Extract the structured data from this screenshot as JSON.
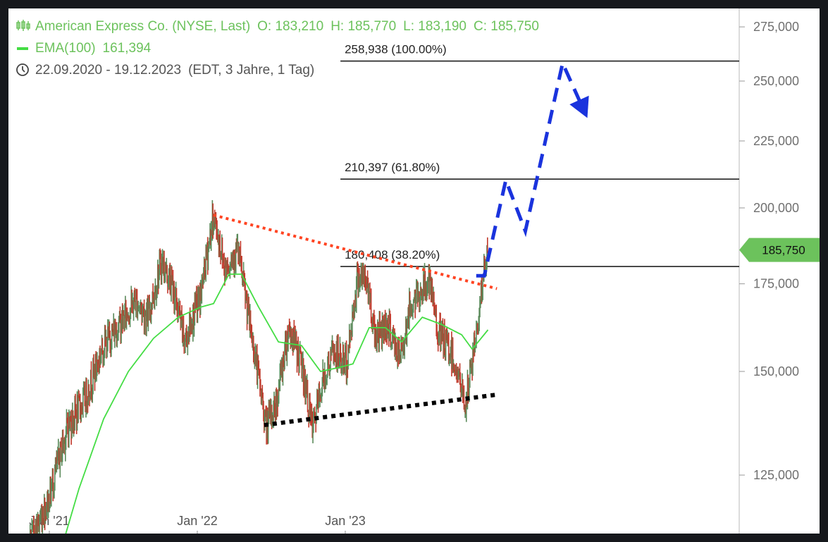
{
  "header": {
    "instrument": "American Express Co. (NYSE, Last)",
    "open": "O: 183,210",
    "high": "H: 185,770",
    "low": "L: 183,190",
    "close": "C: 185,750",
    "ema_label": "EMA(100)",
    "ema_value": "161,394",
    "date_range": "22.09.2020 - 19.12.2023",
    "range_info": "(EDT, 3 Jahre, 1 Tag)",
    "icons": [
      "candlestick-icon",
      "ema-line-icon",
      "clock-icon"
    ]
  },
  "colors": {
    "legend_green": "#6cc25c",
    "candle_up": "#5a8a5a",
    "candle_down": "#c0392b",
    "ema": "#44dd44",
    "resistance": "#ff4422",
    "support": "#000000",
    "projection": "#1a33dd",
    "price_badge": "#6cc25c"
  },
  "chart_data": {
    "type": "line",
    "title": "American Express Co. (NYSE, Last)",
    "xlabel": "",
    "ylabel": "",
    "y_scale": "log",
    "ylim": [
      112000,
      285000
    ],
    "xlim": [
      "2020-09-22",
      "2024-09-15"
    ],
    "x_ticks": [
      {
        "date": "2021-01-01",
        "label": "Jan '21"
      },
      {
        "date": "2022-01-01",
        "label": "Jan '22"
      },
      {
        "date": "2023-01-01",
        "label": "Jan '23"
      }
    ],
    "y_ticks": [
      {
        "value": 275000,
        "label": "275,000"
      },
      {
        "value": 250000,
        "label": "250,000"
      },
      {
        "value": 225000,
        "label": "225,000"
      },
      {
        "value": 200000,
        "label": "200,000"
      },
      {
        "value": 175000,
        "label": "175,000"
      },
      {
        "value": 150000,
        "label": "150,000"
      },
      {
        "value": 125000,
        "label": "125,000"
      }
    ],
    "price_series": [
      {
        "date": "2020-09-22",
        "value": 100000
      },
      {
        "date": "2020-11-15",
        "value": 111000
      },
      {
        "date": "2020-12-31",
        "value": 120000
      },
      {
        "date": "2021-02-15",
        "value": 136000
      },
      {
        "date": "2021-03-31",
        "value": 143000
      },
      {
        "date": "2021-05-15",
        "value": 157000
      },
      {
        "date": "2021-06-30",
        "value": 164000
      },
      {
        "date": "2021-08-01",
        "value": 170000
      },
      {
        "date": "2021-09-01",
        "value": 165000
      },
      {
        "date": "2021-10-05",
        "value": 182000
      },
      {
        "date": "2021-11-01",
        "value": 174000
      },
      {
        "date": "2021-12-01",
        "value": 158000
      },
      {
        "date": "2022-01-10",
        "value": 172000
      },
      {
        "date": "2022-02-10",
        "value": 197000
      },
      {
        "date": "2022-03-10",
        "value": 180000
      },
      {
        "date": "2022-04-10",
        "value": 186000
      },
      {
        "date": "2022-05-10",
        "value": 163000
      },
      {
        "date": "2022-06-20",
        "value": 136000
      },
      {
        "date": "2022-07-15",
        "value": 142000
      },
      {
        "date": "2022-08-15",
        "value": 162000
      },
      {
        "date": "2022-09-15",
        "value": 152000
      },
      {
        "date": "2022-10-12",
        "value": 135000
      },
      {
        "date": "2022-11-05",
        "value": 147000
      },
      {
        "date": "2022-12-01",
        "value": 155000
      },
      {
        "date": "2023-01-05",
        "value": 152000
      },
      {
        "date": "2023-02-01",
        "value": 178000
      },
      {
        "date": "2023-02-25",
        "value": 175000
      },
      {
        "date": "2023-03-15",
        "value": 160000
      },
      {
        "date": "2023-04-15",
        "value": 163000
      },
      {
        "date": "2023-05-15",
        "value": 153000
      },
      {
        "date": "2023-06-10",
        "value": 168000
      },
      {
        "date": "2023-07-25",
        "value": 176000
      },
      {
        "date": "2023-08-20",
        "value": 160000
      },
      {
        "date": "2023-09-20",
        "value": 155000
      },
      {
        "date": "2023-10-25",
        "value": 141000
      },
      {
        "date": "2023-11-20",
        "value": 160000
      },
      {
        "date": "2023-12-05",
        "value": 175000
      },
      {
        "date": "2023-12-19",
        "value": 185750
      }
    ],
    "ema_series": [
      {
        "date": "2021-01-20",
        "value": 107000
      },
      {
        "date": "2021-03-15",
        "value": 122000
      },
      {
        "date": "2021-05-15",
        "value": 138000
      },
      {
        "date": "2021-07-15",
        "value": 150000
      },
      {
        "date": "2021-09-15",
        "value": 159000
      },
      {
        "date": "2021-11-15",
        "value": 165000
      },
      {
        "date": "2022-01-10",
        "value": 168000
      },
      {
        "date": "2022-02-10",
        "value": 169000
      },
      {
        "date": "2022-03-20",
        "value": 178000
      },
      {
        "date": "2022-04-20",
        "value": 178000
      },
      {
        "date": "2022-06-01",
        "value": 168000
      },
      {
        "date": "2022-07-20",
        "value": 158000
      },
      {
        "date": "2022-09-15",
        "value": 157000
      },
      {
        "date": "2022-11-01",
        "value": 150000
      },
      {
        "date": "2022-12-15",
        "value": 151000
      },
      {
        "date": "2023-01-20",
        "value": 152000
      },
      {
        "date": "2023-03-01",
        "value": 162000
      },
      {
        "date": "2023-04-10",
        "value": 162000
      },
      {
        "date": "2023-05-20",
        "value": 158000
      },
      {
        "date": "2023-07-10",
        "value": 165000
      },
      {
        "date": "2023-08-25",
        "value": 163000
      },
      {
        "date": "2023-10-15",
        "value": 160000
      },
      {
        "date": "2023-11-10",
        "value": 156000
      },
      {
        "date": "2023-12-19",
        "value": 161394
      }
    ],
    "fib_levels": [
      {
        "value": 258938,
        "label": "258,938 (100.00%)",
        "from": "2022-12-20"
      },
      {
        "value": 210397,
        "label": "210,397 (61.80%)",
        "from": "2022-12-20"
      },
      {
        "value": 180408,
        "label": "180,408 (38.20%)",
        "from": "2022-12-20"
      }
    ],
    "resistance_line": [
      {
        "date": "2022-02-10",
        "value": 197500
      },
      {
        "date": "2024-01-10",
        "value": 173500
      }
    ],
    "support_line": [
      {
        "date": "2022-06-15",
        "value": 136500
      },
      {
        "date": "2024-01-10",
        "value": 144000
      }
    ],
    "projection_path": [
      {
        "date": "2023-11-20",
        "value": 177500
      },
      {
        "date": "2023-12-10",
        "value": 177500
      },
      {
        "date": "2024-02-01",
        "value": 210000
      },
      {
        "date": "2024-03-20",
        "value": 192000
      },
      {
        "date": "2024-06-20",
        "value": 258000
      },
      {
        "date": "2024-08-10",
        "value": 238000
      }
    ],
    "last_price": {
      "value": 185750,
      "label": "185,750"
    }
  }
}
